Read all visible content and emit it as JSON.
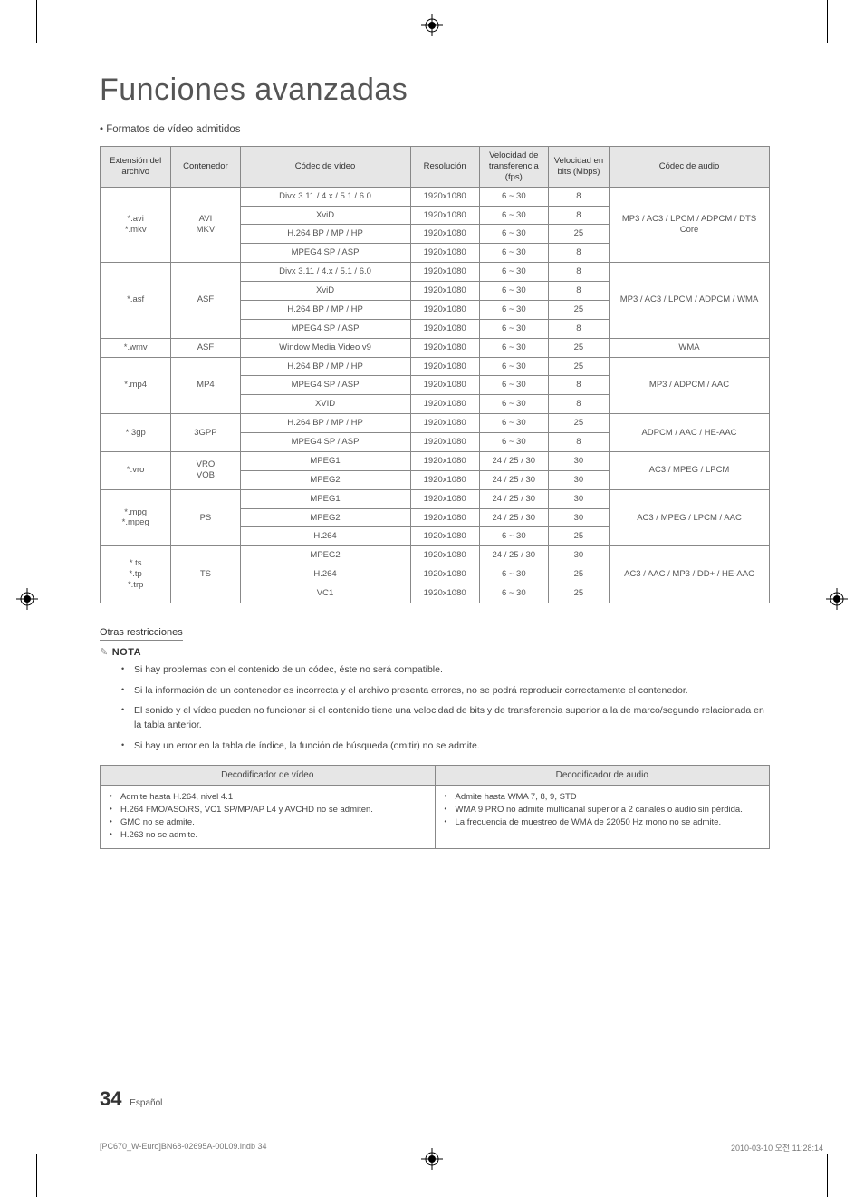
{
  "title": "Funciones avanzadas",
  "section_bullet": "Formatos de vídeo admitidos",
  "columns": {
    "ext": "Extensión del archivo",
    "container": "Contenedor",
    "vcodec": "Códec de vídeo",
    "resolution": "Resolución",
    "fps": "Velocidad de transferencia (fps)",
    "bps": "Velocidad en bits (Mbps)",
    "acodec": "Códec de audio"
  },
  "groups": [
    {
      "ext": "*.avi\n*.mkv",
      "container": "AVI\nMKV",
      "acodec": "MP3 / AC3 / LPCM / ADPCM / DTS Core",
      "rows": [
        {
          "v": "Divx 3.11 / 4.x / 5.1 / 6.0",
          "r": "1920x1080",
          "f": "6 ~ 30",
          "b": "8"
        },
        {
          "v": "XviD",
          "r": "1920x1080",
          "f": "6 ~ 30",
          "b": "8"
        },
        {
          "v": "H.264 BP / MP / HP",
          "r": "1920x1080",
          "f": "6 ~ 30",
          "b": "25"
        },
        {
          "v": "MPEG4 SP / ASP",
          "r": "1920x1080",
          "f": "6 ~ 30",
          "b": "8"
        }
      ]
    },
    {
      "ext": "*.asf",
      "container": "ASF",
      "acodec": "MP3 / AC3 / LPCM / ADPCM / WMA",
      "rows": [
        {
          "v": "Divx 3.11 / 4.x / 5.1 / 6.0",
          "r": "1920x1080",
          "f": "6 ~ 30",
          "b": "8"
        },
        {
          "v": "XviD",
          "r": "1920x1080",
          "f": "6 ~ 30",
          "b": "8"
        },
        {
          "v": "H.264 BP / MP / HP",
          "r": "1920x1080",
          "f": "6 ~ 30",
          "b": "25"
        },
        {
          "v": "MPEG4 SP / ASP",
          "r": "1920x1080",
          "f": "6 ~ 30",
          "b": "8"
        }
      ]
    },
    {
      "ext": "*.wmv",
      "container": "ASF",
      "acodec": "WMA",
      "rows": [
        {
          "v": "Window Media Video v9",
          "r": "1920x1080",
          "f": "6 ~ 30",
          "b": "25"
        }
      ]
    },
    {
      "ext": "*.mp4",
      "container": "MP4",
      "acodec": "MP3 / ADPCM / AAC",
      "rows": [
        {
          "v": "H.264 BP / MP / HP",
          "r": "1920x1080",
          "f": "6 ~ 30",
          "b": "25"
        },
        {
          "v": "MPEG4 SP / ASP",
          "r": "1920x1080",
          "f": "6 ~ 30",
          "b": "8"
        },
        {
          "v": "XVID",
          "r": "1920x1080",
          "f": "6 ~ 30",
          "b": "8"
        }
      ]
    },
    {
      "ext": "*.3gp",
      "container": "3GPP",
      "acodec": "ADPCM / AAC / HE-AAC",
      "rows": [
        {
          "v": "H.264 BP / MP / HP",
          "r": "1920x1080",
          "f": "6 ~ 30",
          "b": "25"
        },
        {
          "v": "MPEG4 SP / ASP",
          "r": "1920x1080",
          "f": "6 ~ 30",
          "b": "8"
        }
      ]
    },
    {
      "ext": "*.vro",
      "container": "VRO\nVOB",
      "acodec": "AC3 / MPEG / LPCM",
      "rows": [
        {
          "v": "MPEG1",
          "r": "1920x1080",
          "f": "24 / 25 / 30",
          "b": "30"
        },
        {
          "v": "MPEG2",
          "r": "1920x1080",
          "f": "24 / 25 / 30",
          "b": "30"
        }
      ]
    },
    {
      "ext": "*.mpg\n*.mpeg",
      "container": "PS",
      "acodec": "AC3 / MPEG / LPCM / AAC",
      "rows": [
        {
          "v": "MPEG1",
          "r": "1920x1080",
          "f": "24 / 25 / 30",
          "b": "30"
        },
        {
          "v": "MPEG2",
          "r": "1920x1080",
          "f": "24 / 25 / 30",
          "b": "30"
        },
        {
          "v": "H.264",
          "r": "1920x1080",
          "f": "6 ~ 30",
          "b": "25"
        }
      ]
    },
    {
      "ext": "*.ts\n*.tp\n*.trp",
      "container": "TS",
      "acodec": "AC3 / AAC / MP3 / DD+ / HE-AAC",
      "rows": [
        {
          "v": "MPEG2",
          "r": "1920x1080",
          "f": "24 / 25 / 30",
          "b": "30"
        },
        {
          "v": "H.264",
          "r": "1920x1080",
          "f": "6 ~ 30",
          "b": "25"
        },
        {
          "v": "VC1",
          "r": "1920x1080",
          "f": "6 ~ 30",
          "b": "25"
        }
      ]
    }
  ],
  "restrictions_title": "Otras restricciones",
  "nota_label": "NOTA",
  "notes": [
    "Si hay problemas con el contenido de un códec, éste no será compatible.",
    "Si la información de un contenedor es incorrecta y el archivo presenta errores, no se podrá reproducir correctamente el contenedor.",
    "El sonido y el vídeo pueden no funcionar si el contenido tiene una velocidad de bits y de transferencia superior a la de marco/segundo relacionada en la tabla anterior.",
    "Si hay un error en la tabla de índice, la función de búsqueda (omitir) no se admite."
  ],
  "decoder_headers": {
    "video": "Decodificador de vídeo",
    "audio": "Decodificador de audio"
  },
  "decoder_video": [
    "Admite hasta H.264, nivel 4.1",
    "H.264 FMO/ASO/RS, VC1 SP/MP/AP L4 y AVCHD no se admiten.",
    "GMC no se admite.",
    "H.263 no se admite."
  ],
  "decoder_audio": [
    "Admite hasta WMA 7, 8, 9, STD",
    "WMA 9 PRO no admite multicanal superior a 2 canales o audio sin pérdida.",
    "La frecuencia de muestreo de WMA de 22050 Hz mono no se admite."
  ],
  "page_number": "34",
  "page_lang": "Español",
  "print_left": "[PC670_W-Euro]BN68-02695A-00L09.indb   34",
  "print_right": "2010-03-10   오전 11:28:14"
}
